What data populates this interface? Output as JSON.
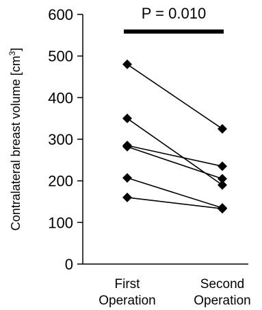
{
  "chart_data": {
    "type": "line",
    "ylabel": "Contralateral breast volume [cm",
    "ylabel_unit_sup": "3",
    "ylabel_close": "]",
    "categories": [
      "First Operation",
      "Second Operation"
    ],
    "category_label_lines": [
      [
        "First",
        "Operation"
      ],
      [
        "Second",
        "Operation"
      ]
    ],
    "ylim": [
      0,
      600
    ],
    "yticks": [
      0,
      100,
      200,
      300,
      400,
      500,
      600
    ],
    "annotation": "P = 0.010",
    "series": [
      {
        "values": [
          480,
          325
        ]
      },
      {
        "values": [
          350,
          190
        ]
      },
      {
        "values": [
          285,
          235
        ]
      },
      {
        "values": [
          282,
          205
        ]
      },
      {
        "values": [
          207,
          135
        ]
      },
      {
        "values": [
          160,
          133
        ]
      }
    ],
    "grid": false,
    "marker": "diamond",
    "colors": {
      "line": "#000000",
      "marker": "#000000"
    }
  }
}
